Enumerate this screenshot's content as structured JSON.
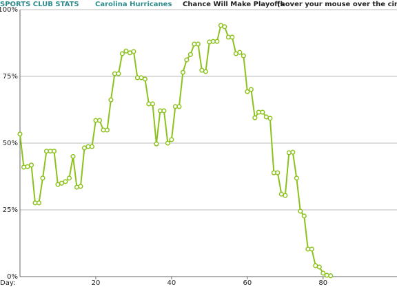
{
  "chart_data": {
    "type": "line",
    "site": "SPORTS CLUB STATS",
    "team": "Carolina Hurricanes",
    "title": "Chance Will Make Playoffs",
    "subtitle": "(hover your mouse over the circles)",
    "x_label": "Day:",
    "x": [
      0,
      1,
      2,
      3,
      4,
      5,
      6,
      7,
      8,
      9,
      10,
      11,
      12,
      13,
      14,
      15,
      16,
      17,
      18,
      19,
      20,
      21,
      22,
      23,
      24,
      25,
      26,
      27,
      28,
      29,
      30,
      31,
      32,
      33,
      34,
      35,
      36,
      37,
      38,
      39,
      40,
      41,
      42,
      43,
      44,
      45,
      46,
      47,
      48,
      49,
      50,
      51,
      52,
      53,
      54,
      55,
      56,
      57,
      58,
      59,
      60,
      61,
      62,
      63,
      64,
      65,
      66,
      67,
      68,
      69,
      70,
      71,
      72,
      73,
      74,
      75,
      76,
      77,
      78,
      79,
      80,
      81,
      82
    ],
    "series": [
      {
        "color": "#8cc21d",
        "values": [
          53.4,
          41,
          41.2,
          41.8,
          27.6,
          27.6,
          36.9,
          47,
          47,
          47,
          34.5,
          35,
          35.6,
          36.9,
          45,
          33.5,
          33.8,
          48.2,
          48.7,
          48.7,
          58.5,
          58.5,
          54.9,
          54.9,
          66.2,
          76,
          76,
          83.5,
          84.5,
          83.8,
          84.3,
          74.5,
          74.5,
          74,
          64.7,
          64.7,
          49.7,
          62.1,
          62.1,
          50,
          51.3,
          63.7,
          63.7,
          76.5,
          81.2,
          83.2,
          87.1,
          87.1,
          77.3,
          76.8,
          87.9,
          88.1,
          88.1,
          94.1,
          93.6,
          89.7,
          89.7,
          83.5,
          84,
          82.7,
          69.3,
          70.1,
          59.5,
          61.6,
          61.6,
          59.8,
          59.3,
          38.9,
          38.9,
          30.9,
          30.4,
          46.4,
          46.6,
          36.9,
          24.5,
          22.7,
          10.3,
          10.3,
          4.1,
          3.6,
          1.3,
          0.5,
          0.3
        ]
      }
    ],
    "xlim": [
      0,
      99.5
    ],
    "xticks": [
      20,
      40,
      60,
      80
    ],
    "ylim": [
      0,
      100
    ],
    "yticks": [
      {
        "value": 0,
        "label": "0%"
      },
      {
        "value": 25,
        "label": "25%"
      },
      {
        "value": 50,
        "label": "50%"
      },
      {
        "value": 75,
        "label": "75%"
      },
      {
        "value": 100,
        "label": "100%"
      }
    ],
    "grid": true
  }
}
